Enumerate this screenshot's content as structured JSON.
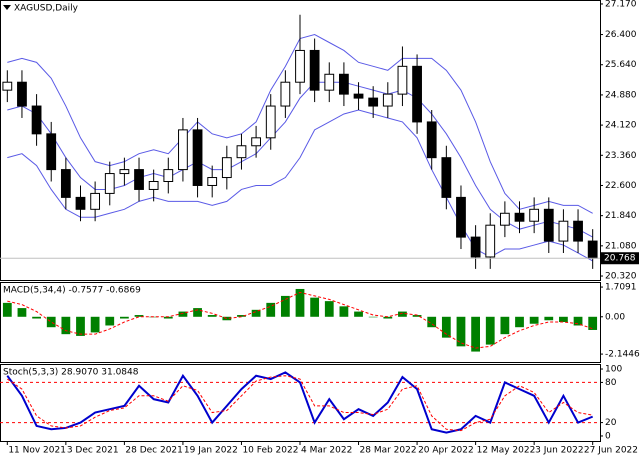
{
  "chart_data": [
    {
      "type": "candlestick",
      "title": "XAGUSD,Daily",
      "categories": [
        "11 Nov 2021",
        null,
        null,
        null,
        "3 Dec 2021",
        null,
        null,
        null,
        "28 Dec 2021",
        null,
        null,
        null,
        "19 Jan 2022",
        null,
        null,
        null,
        "10 Feb 2022",
        null,
        null,
        null,
        "4 Mar 2022",
        null,
        null,
        null,
        "28 Mar 2022",
        null,
        null,
        null,
        "20 Apr 2022",
        null,
        null,
        null,
        "12 May 2022",
        null,
        null,
        null,
        "3 Jun 2022",
        null,
        null,
        null,
        "27 Jun 2022"
      ],
      "open": [
        25.0,
        25.2,
        24.6,
        23.9,
        23.0,
        22.3,
        22.0,
        22.4,
        22.9,
        23.0,
        22.5,
        22.7,
        23.0,
        24.0,
        22.6,
        22.8,
        23.3,
        23.6,
        23.8,
        24.6,
        25.2,
        26.0,
        25.0,
        25.4,
        24.9,
        24.8,
        24.6,
        24.9,
        25.6,
        24.2,
        23.3,
        22.3,
        21.3,
        20.8,
        21.6,
        21.9,
        21.7,
        22.0,
        21.2,
        21.7,
        21.2
      ],
      "high": [
        25.5,
        25.5,
        24.9,
        24.2,
        23.3,
        22.6,
        22.7,
        23.2,
        23.3,
        23.3,
        23.0,
        23.3,
        24.3,
        24.3,
        23.1,
        23.6,
        23.9,
        24.1,
        24.9,
        25.5,
        26.9,
        26.3,
        25.7,
        25.7,
        25.2,
        25.1,
        25.2,
        26.1,
        25.9,
        24.5,
        23.6,
        22.6,
        21.6,
        21.9,
        22.2,
        22.2,
        22.3,
        22.3,
        22.0,
        22.0,
        21.5
      ],
      "low": [
        24.7,
        24.3,
        23.6,
        22.7,
        22.0,
        21.7,
        21.7,
        22.1,
        22.6,
        22.2,
        22.2,
        22.4,
        22.7,
        22.3,
        22.3,
        22.5,
        23.0,
        23.3,
        23.5,
        24.3,
        24.9,
        24.7,
        24.7,
        24.6,
        24.5,
        24.3,
        24.3,
        24.6,
        23.9,
        23.0,
        22.0,
        21.0,
        20.5,
        20.5,
        21.3,
        21.4,
        21.4,
        20.9,
        20.9,
        20.9,
        20.5
      ],
      "close": [
        25.2,
        24.6,
        23.9,
        23.0,
        22.3,
        22.0,
        22.4,
        22.9,
        23.0,
        22.5,
        22.7,
        23.0,
        24.0,
        22.6,
        22.8,
        23.3,
        23.6,
        23.8,
        24.6,
        25.2,
        26.0,
        25.0,
        25.4,
        24.9,
        24.8,
        24.6,
        24.9,
        25.6,
        24.2,
        23.3,
        22.3,
        21.3,
        20.8,
        21.6,
        21.9,
        21.7,
        22.0,
        21.2,
        21.7,
        21.2,
        20.768
      ],
      "series": [
        {
          "color": "#5a5ae6",
          "values": [
            25.7,
            25.8,
            25.7,
            25.3,
            24.6,
            23.8,
            23.2,
            23.1,
            23.2,
            23.4,
            23.5,
            23.4,
            23.8,
            24.2,
            23.9,
            23.8,
            23.9,
            24.2,
            25.0,
            25.6,
            26.3,
            26.4,
            26.2,
            26.0,
            25.7,
            25.6,
            25.5,
            25.8,
            25.8,
            25.8,
            25.5,
            25.0,
            24.2,
            23.2,
            22.4,
            22.0,
            22.1,
            22.2,
            22.1,
            22.1,
            21.9
          ]
        },
        {
          "color": "#5a5ae6",
          "values": [
            24.5,
            24.6,
            24.4,
            23.9,
            23.3,
            22.8,
            22.5,
            22.5,
            22.6,
            22.8,
            22.9,
            22.8,
            23.0,
            23.2,
            23.0,
            23.0,
            23.2,
            23.4,
            23.8,
            24.2,
            24.8,
            25.2,
            25.2,
            25.2,
            25.1,
            25.0,
            24.9,
            25.0,
            24.8,
            24.4,
            23.9,
            23.3,
            22.6,
            22.0,
            21.7,
            21.5,
            21.6,
            21.7,
            21.6,
            21.5,
            21.3
          ]
        },
        {
          "color": "#5a5ae6",
          "values": [
            23.3,
            23.4,
            23.1,
            22.5,
            22.0,
            21.8,
            21.8,
            21.9,
            22.0,
            22.2,
            22.3,
            22.2,
            22.2,
            22.2,
            22.1,
            22.2,
            22.5,
            22.6,
            22.6,
            22.8,
            23.3,
            24.0,
            24.2,
            24.4,
            24.5,
            24.4,
            24.3,
            24.2,
            23.8,
            23.0,
            22.3,
            21.6,
            21.0,
            20.8,
            21.0,
            21.0,
            21.1,
            21.2,
            21.1,
            20.9,
            20.7
          ]
        }
      ],
      "ylim": [
        20.22,
        27.27
      ],
      "yticks": [
        {
          "value": 27.17,
          "label": "27.170"
        },
        {
          "value": 26.4,
          "label": "26.400"
        },
        {
          "value": 25.64,
          "label": "25.640"
        },
        {
          "value": 24.88,
          "label": "24.880"
        },
        {
          "value": 24.12,
          "label": "24.120"
        },
        {
          "value": 23.36,
          "label": "23.360"
        },
        {
          "value": 22.6,
          "label": "22.600"
        },
        {
          "value": 21.84,
          "label": "21.840"
        },
        {
          "value": 21.08,
          "label": "21.080"
        },
        {
          "value": 20.32,
          "label": "20.320"
        }
      ]
    },
    {
      "type": "macd",
      "title": "MACD(5,34,4) -0.7577 -0.6869",
      "values": [
        0.8,
        0.5,
        -0.1,
        -0.6,
        -1.0,
        -1.1,
        -0.9,
        -0.5,
        -0.1,
        0.1,
        0.0,
        -0.1,
        0.3,
        0.5,
        0.1,
        -0.2,
        0.1,
        0.4,
        0.8,
        1.2,
        1.6,
        1.1,
        0.9,
        0.6,
        0.3,
        0.0,
        -0.1,
        0.3,
        0.1,
        -0.6,
        -1.2,
        -1.7,
        -2.0,
        -1.6,
        -1.0,
        -0.6,
        -0.4,
        -0.2,
        -0.3,
        -0.5,
        -0.7577
      ],
      "color": "#008000",
      "series": [
        {
          "color": "#ff0000",
          "values": [
            0.9,
            0.7,
            0.3,
            -0.3,
            -0.8,
            -1.0,
            -1.0,
            -0.7,
            -0.3,
            0.0,
            0.0,
            0.0,
            0.2,
            0.4,
            0.2,
            -0.1,
            0.0,
            0.3,
            0.6,
            1.0,
            1.4,
            1.2,
            1.0,
            0.7,
            0.4,
            0.1,
            0.0,
            0.2,
            0.1,
            -0.4,
            -1.0,
            -1.5,
            -1.8,
            -1.7,
            -1.2,
            -0.8,
            -0.5,
            -0.3,
            -0.3,
            -0.4,
            -0.6869
          ]
        }
      ],
      "ylim": [
        -2.6,
        2.0
      ],
      "yticks": [
        1.7091,
        {
          "value": 0,
          "label": "0.00"
        },
        -2.1446
      ]
    },
    {
      "type": "stochastic",
      "title": "Stoch(5,3,3) 28.9070 31.0848",
      "series": [
        {
          "color": "#0000cd",
          "values": [
            90,
            60,
            15,
            10,
            12,
            20,
            35,
            40,
            45,
            75,
            55,
            50,
            90,
            60,
            20,
            45,
            70,
            90,
            85,
            95,
            80,
            20,
            55,
            25,
            40,
            30,
            50,
            88,
            70,
            10,
            5,
            10,
            30,
            20,
            80,
            70,
            60,
            20,
            60,
            20,
            28.907
          ]
        },
        {
          "color": "#ff0000",
          "values": [
            85,
            70,
            30,
            15,
            12,
            15,
            28,
            38,
            42,
            60,
            60,
            52,
            75,
            68,
            35,
            38,
            60,
            82,
            88,
            90,
            85,
            45,
            45,
            35,
            35,
            32,
            40,
            70,
            75,
            30,
            10,
            8,
            20,
            25,
            60,
            75,
            65,
            35,
            50,
            35,
            31.0848
          ]
        }
      ],
      "levels": [
        20,
        80
      ],
      "ylim": [
        -7.5,
        107.5
      ],
      "yticks": [
        0,
        20,
        80,
        100
      ]
    }
  ]
}
